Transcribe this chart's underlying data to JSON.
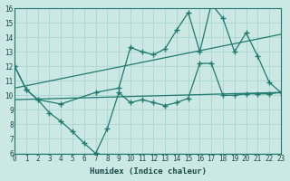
{
  "xlabel": "Humidex (Indice chaleur)",
  "xlim": [
    0,
    23
  ],
  "ylim": [
    6,
    16
  ],
  "xticks": [
    0,
    1,
    2,
    3,
    4,
    5,
    6,
    7,
    8,
    9,
    10,
    11,
    12,
    13,
    14,
    15,
    16,
    17,
    18,
    19,
    20,
    21,
    22,
    23
  ],
  "yticks": [
    6,
    7,
    8,
    9,
    10,
    11,
    12,
    13,
    14,
    15,
    16
  ],
  "bg_color": "#cce8e5",
  "grid_color": "#aad4d0",
  "line_color": "#1e7a6e",
  "line1_x": [
    0,
    1,
    2,
    3,
    4,
    5,
    6,
    7,
    8,
    9,
    10,
    11,
    12,
    13,
    14,
    15,
    16,
    17,
    18,
    19,
    20,
    21,
    22,
    23
  ],
  "line1_y": [
    12,
    10.4,
    9.7,
    8.8,
    8.2,
    7.5,
    6.7,
    6.0,
    7.7,
    10.2,
    9.5,
    9.7,
    9.5,
    9.3,
    9.5,
    9.8,
    12.2,
    12.2,
    10.0,
    10.0,
    10.1,
    10.1,
    10.1,
    10.2
  ],
  "line2_x": [
    0,
    1,
    2,
    4,
    7,
    9,
    10,
    11,
    12,
    13,
    14,
    15,
    16,
    17,
    18,
    19,
    20,
    21,
    22,
    23
  ],
  "line2_y": [
    12,
    10.4,
    9.7,
    9.4,
    10.2,
    10.5,
    13.3,
    13.0,
    12.8,
    13.2,
    14.5,
    15.7,
    13.0,
    16.3,
    15.3,
    13.0,
    14.3,
    12.7,
    10.9,
    10.2
  ],
  "line3_x": [
    0,
    23
  ],
  "line3_y": [
    9.7,
    10.2
  ],
  "line4_x": [
    0,
    23
  ],
  "line4_y": [
    10.5,
    14.2
  ]
}
